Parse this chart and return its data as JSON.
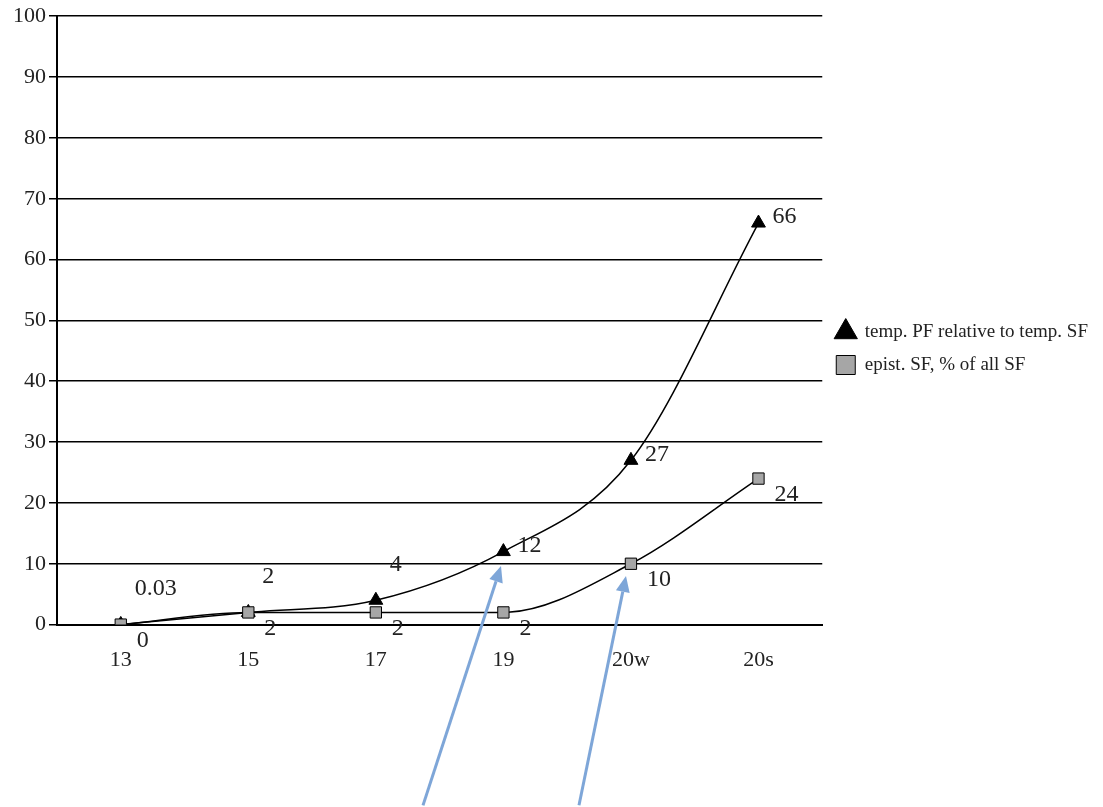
{
  "chart_data": {
    "type": "line",
    "categories": [
      "13",
      "15",
      "17",
      "19",
      "20w",
      "20s"
    ],
    "series": [
      {
        "name": "temp. PF relative to temp. SF",
        "color": "#000000",
        "marker": "triangle",
        "values": [
          0.03,
          2,
          4,
          12,
          27,
          66
        ]
      },
      {
        "name": "epist. SF, % of all SF",
        "color": "#a6a6a6",
        "marker": "square",
        "values": [
          0,
          2,
          2,
          2,
          10,
          24
        ]
      }
    ],
    "ylim": [
      0,
      100
    ],
    "yticks": [
      0,
      10,
      20,
      30,
      40,
      50,
      60,
      70,
      80,
      90,
      100
    ],
    "grid": "y",
    "legend": "right",
    "data_labels": true
  }
}
